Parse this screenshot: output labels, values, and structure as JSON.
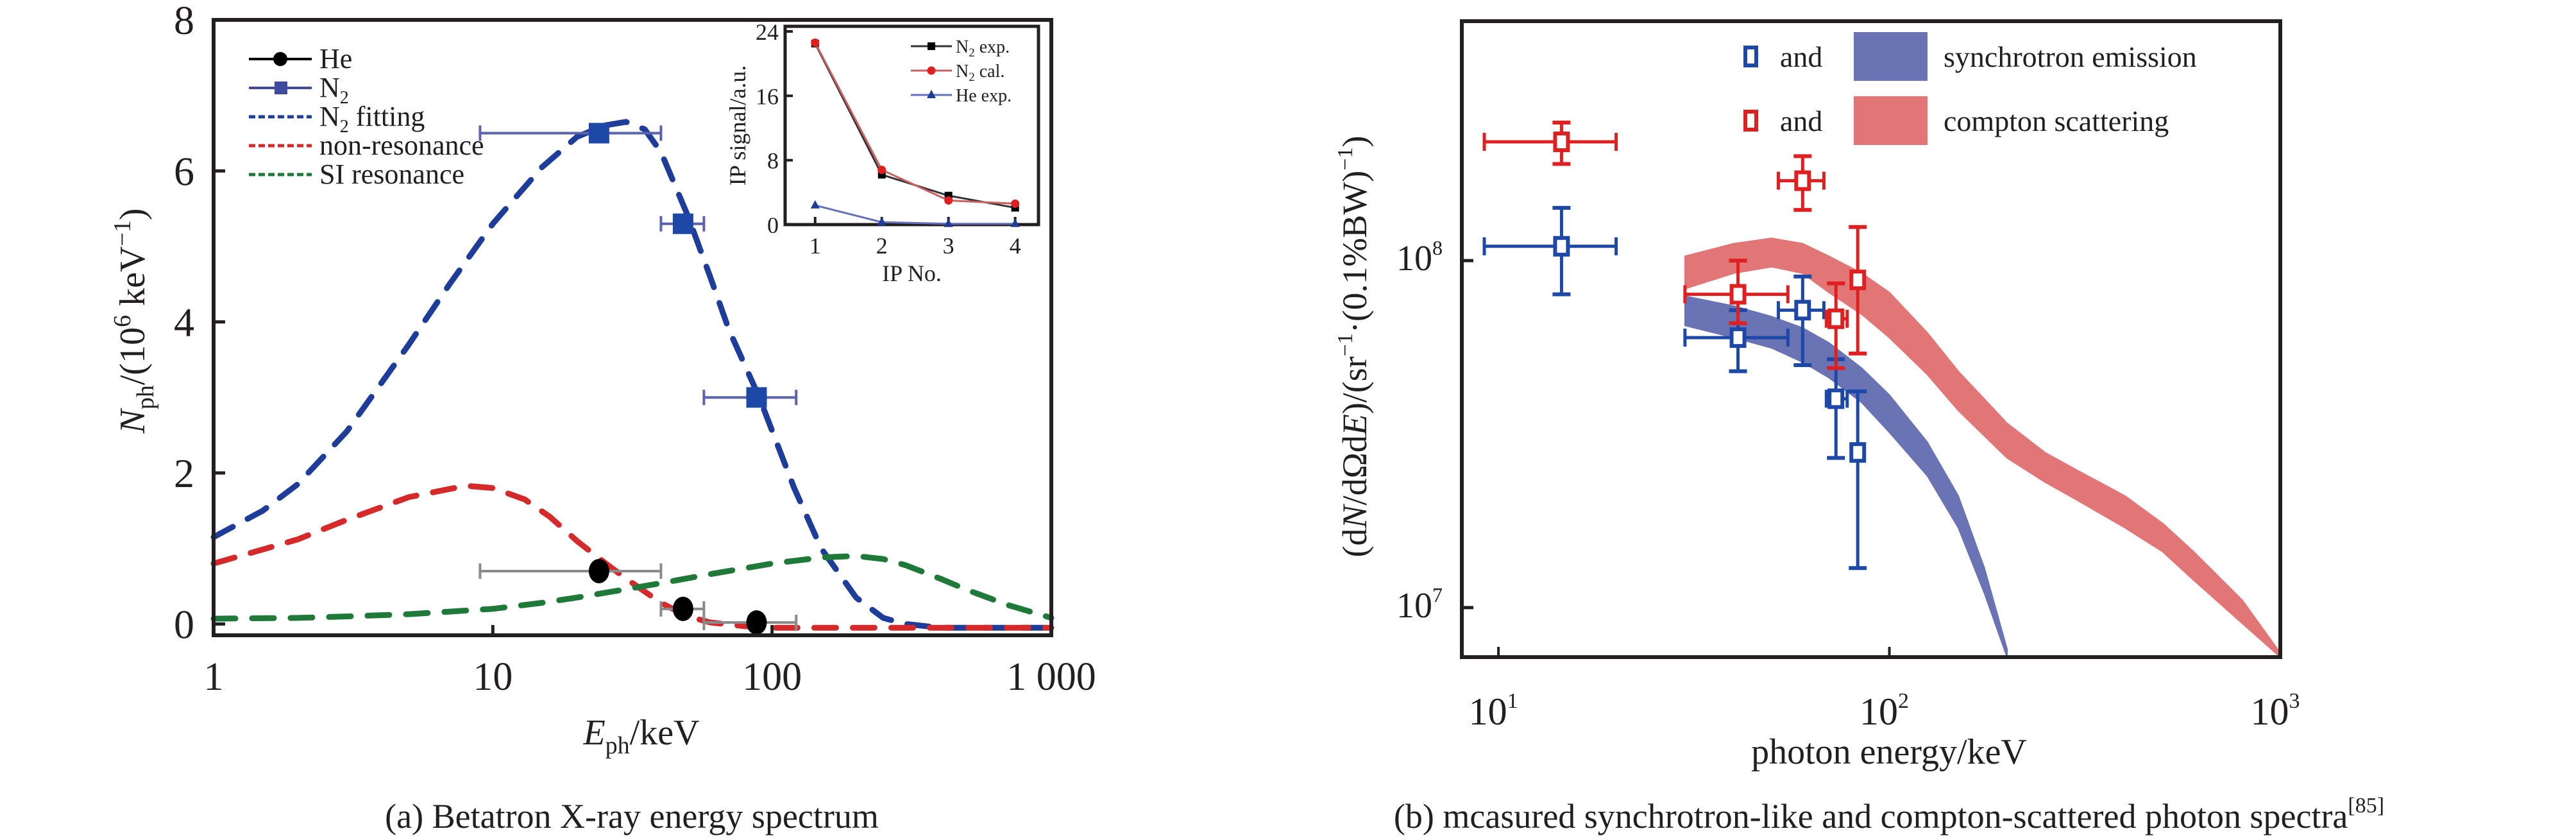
{
  "chart_data": [
    {
      "id": "a",
      "type": "line",
      "caption": "(a) Betatron X-ray energy spectrum",
      "xlabel": {
        "main": "E",
        "sub": "ph",
        "rest": "/keV"
      },
      "ylabel": {
        "main": "N",
        "sub": "ph",
        "rest": "/(10",
        "sup": "6",
        "rest2": " keV",
        "sup2": "−1",
        "close": ")"
      },
      "xscale": "log",
      "xlim": [
        1,
        1000
      ],
      "ylim": [
        -0.15,
        8
      ],
      "xticks": [
        1,
        10,
        100,
        1000
      ],
      "xtick_labels": [
        "1",
        "10",
        "100",
        "1 000"
      ],
      "yticks": [
        0,
        2,
        4,
        6,
        8
      ],
      "ytick_labels": [
        "0",
        "2",
        "4",
        "6",
        "8"
      ],
      "legend_position": "top-left",
      "legend": [
        {
          "label": "He",
          "sub": "",
          "rest": "",
          "style": "line-marker-circle",
          "color": "#000000",
          "text_color": "#231f20"
        },
        {
          "label": "N",
          "sub": "2",
          "rest": "",
          "style": "line-marker-square",
          "color": "#3f4aa0",
          "text_color": "#1d4e9e"
        },
        {
          "label": "N",
          "sub": "2",
          "rest": " fitting",
          "style": "dashed",
          "color": "#1e3c9a",
          "text_color": "#1d4e9e"
        },
        {
          "label": "non-resonance",
          "sub": "",
          "rest": "",
          "style": "dashed",
          "color": "#d62a2a",
          "text_color": "#d7182a"
        },
        {
          "label": "SI resonance",
          "sub": "",
          "rest": "",
          "style": "dashed",
          "color": "#1f7a3a",
          "text_color": "#1a6e3b"
        }
      ],
      "series": [
        {
          "name": "N2 fitting",
          "style": "dashed",
          "color": "#1e3c9a",
          "x": [
            1,
            1.5,
            2,
            3,
            5,
            7,
            10,
            15,
            20,
            25,
            30,
            35,
            40,
            50,
            60,
            70,
            90,
            120,
            150,
            200,
            250,
            300,
            400,
            1000
          ],
          "y": [
            1.15,
            1.5,
            1.85,
            2.55,
            3.7,
            4.5,
            5.3,
            6.05,
            6.45,
            6.6,
            6.65,
            6.55,
            6.25,
            5.4,
            4.6,
            3.9,
            3.0,
            1.8,
            1.0,
            0.35,
            0.08,
            0.0,
            -0.05,
            -0.05
          ]
        },
        {
          "name": "non-resonance",
          "style": "dashed",
          "color": "#d62a2a",
          "x": [
            1,
            2,
            3,
            5,
            8,
            10,
            13,
            16,
            20,
            25,
            30,
            40,
            50,
            60,
            80,
            100,
            1000
          ],
          "y": [
            0.8,
            1.12,
            1.38,
            1.68,
            1.83,
            1.8,
            1.65,
            1.42,
            1.1,
            0.82,
            0.6,
            0.28,
            0.1,
            0.02,
            -0.03,
            -0.05,
            -0.05
          ]
        },
        {
          "name": "SI resonance",
          "style": "dashed",
          "color": "#1f7a3a",
          "x": [
            1,
            2,
            3,
            5,
            10,
            15,
            20,
            30,
            40,
            60,
            100,
            150,
            200,
            250,
            300,
            400,
            500,
            700,
            1000
          ],
          "y": [
            0.07,
            0.08,
            0.1,
            0.13,
            0.2,
            0.28,
            0.35,
            0.46,
            0.54,
            0.66,
            0.8,
            0.88,
            0.9,
            0.86,
            0.78,
            0.6,
            0.45,
            0.25,
            0.08
          ]
        },
        {
          "name": "N2",
          "style": "markers-square",
          "color": "#1e48a8",
          "errcolor": "#5a63ad",
          "points": [
            {
              "x": 24,
              "y": 6.5,
              "xmin": 9,
              "xmax": 40
            },
            {
              "x": 48,
              "y": 5.3,
              "xmin": 40,
              "xmax": 57
            },
            {
              "x": 88,
              "y": 3.0,
              "xmin": 57,
              "xmax": 122
            }
          ]
        },
        {
          "name": "He",
          "style": "markers-circle",
          "color": "#000000",
          "errcolor": "#8a8a8a",
          "points": [
            {
              "x": 24,
              "y": 0.7,
              "xmin": 9,
              "xmax": 40
            },
            {
              "x": 48,
              "y": 0.2,
              "xmin": 40,
              "xmax": 57
            },
            {
              "x": 88,
              "y": 0.02,
              "xmin": 57,
              "xmax": 122
            }
          ]
        }
      ],
      "inset": {
        "type": "line",
        "xlabel": "IP No.",
        "ylabel": "IP signal/a.u.",
        "xlim": [
          0.55,
          4.35
        ],
        "ylim": [
          0,
          24
        ],
        "categories": [
          1,
          2,
          3,
          4
        ],
        "xtick_labels": [
          "1",
          "2",
          "3",
          "4"
        ],
        "yticks": [
          0,
          8,
          16,
          24
        ],
        "ytick_labels": [
          "0",
          "8",
          "16",
          "24"
        ],
        "legend_position": "top-right",
        "series": [
          {
            "name": "N2 exp.",
            "label": "N",
            "sub": "2",
            "rest": " exp.",
            "marker": "square",
            "color": "#000000",
            "line_color": "#333333",
            "values": [
              22.5,
              6.2,
              3.6,
              2.1
            ]
          },
          {
            "name": "N2 cal.",
            "label": "N",
            "sub": "2",
            "rest": " cal.",
            "marker": "circle",
            "color": "#e02020",
            "line_color": "#c96060",
            "values": [
              22.6,
              6.8,
              3.0,
              2.6
            ]
          },
          {
            "name": "He exp.",
            "label": "He exp.",
            "sub": "",
            "rest": "",
            "marker": "triangle",
            "color": "#1e3c9a",
            "line_color": "#6670c0",
            "values": [
              2.4,
              0.3,
              0.1,
              0.1
            ]
          }
        ]
      }
    },
    {
      "id": "b",
      "type": "scatter",
      "caption": "(b) mcasured synchrotron-like and compton-scattered photon spectra",
      "caption_sup": "[85]",
      "xlabel": "photon energy/keV",
      "ylabel": {
        "pre": "(d",
        "n": "N",
        "mid": "/dΩd",
        "e": "E",
        "rest": ")/(sr",
        "sup1": "−1",
        "dot": "·(0.1%BW)",
        "sup2": "−1",
        "close": ")"
      },
      "xscale": "log",
      "yscale": "log",
      "xlim": [
        8.06,
        1000
      ],
      "ylim": [
        7200000.0,
        490000000.0
      ],
      "xticks": [
        10,
        100,
        1000
      ],
      "xtick_labels": [
        {
          "base": "10",
          "exp": "1"
        },
        {
          "base": "10",
          "exp": "2"
        },
        {
          "base": "10",
          "exp": "3"
        }
      ],
      "yticks": [
        10000000.0,
        100000000.0
      ],
      "ytick_labels": [
        {
          "base": "10",
          "exp": "7"
        },
        {
          "base": "10",
          "exp": "8"
        }
      ],
      "legend_position": "top-center",
      "legend": [
        {
          "marker_color": "#1e48a8",
          "and": "and",
          "band_color": "#6a74b4",
          "label": "synchrotron emission"
        },
        {
          "marker_color": "#e02020",
          "and": "and",
          "band_color": "#e27677",
          "label": "compton scattering"
        }
      ],
      "bands": [
        {
          "name": "synchrotron emission",
          "color": "#6a74b4",
          "x": [
            30,
            40,
            50,
            60,
            70,
            85,
            100,
            125,
            150,
            175,
            200
          ],
          "upper": [
            79000000.0,
            74000000.0,
            69000000.0,
            64000000.0,
            58000000.0,
            49000000.0,
            41000000.0,
            30000000.0,
            21000000.0,
            13000000.0,
            7600000.0
          ],
          "lower": [
            65000000.0,
            60000000.0,
            56000000.0,
            51000000.0,
            46000000.0,
            39000000.0,
            32000000.0,
            24000000.0,
            17000000.0,
            11000000.0,
            7200000.0
          ]
        },
        {
          "name": "compton scattering",
          "color": "#e27677",
          "x": [
            30,
            40,
            50,
            60,
            70,
            85,
            100,
            125,
            150,
            200,
            250,
            300,
            400,
            500,
            600,
            800,
            1000
          ],
          "upper": [
            103000000.0,
            112000000.0,
            116000000.0,
            112000000.0,
            103000000.0,
            92000000.0,
            81000000.0,
            62000000.0,
            48000000.0,
            34000000.0,
            28000000.0,
            25000000.0,
            21000000.0,
            17500000.0,
            14500000.0,
            10500000.0,
            7400000.0
          ],
          "lower": [
            83000000.0,
            92000000.0,
            96000000.0,
            92000000.0,
            81000000.0,
            70000000.0,
            60000000.0,
            47000000.0,
            37000000.0,
            27000000.0,
            23000000.0,
            20500000.0,
            17000000.0,
            14500000.0,
            12000000.0,
            9000000.0,
            7200000.0
          ]
        }
      ],
      "series": [
        {
          "name": "synchrotron-like measured",
          "color": "#1e48a8",
          "points": [
            {
              "x": 14.5,
              "y": 110000000.0,
              "xmin": 9.2,
              "xmax": 20,
              "ymin": 80000000.0,
              "ymax": 142000000.0
            },
            {
              "x": 41,
              "y": 60000000.0,
              "xmin": 30,
              "xmax": 55,
              "ymin": 48000000.0,
              "ymax": 72000000.0
            },
            {
              "x": 60,
              "y": 72000000.0,
              "xmin": 52,
              "xmax": 68,
              "ymin": 50000000.0,
              "ymax": 90000000.0
            },
            {
              "x": 73,
              "y": 40000000.0,
              "xmin": 69,
              "xmax": 78,
              "ymin": 27000000.0,
              "ymax": 52000000.0
            },
            {
              "x": 83,
              "y": 28000000.0,
              "xmin": 83,
              "xmax": 83,
              "ymin": 13000000.0,
              "ymax": 42000000.0
            }
          ]
        },
        {
          "name": "compton-scattered measured",
          "color": "#e02020",
          "points": [
            {
              "x": 14.5,
              "y": 220000000.0,
              "xmin": 9.2,
              "xmax": 20,
              "ymin": 190000000.0,
              "ymax": 250000000.0
            },
            {
              "x": 60,
              "y": 170000000.0,
              "xmin": 52,
              "xmax": 68,
              "ymin": 140000000.0,
              "ymax": 200000000.0
            },
            {
              "x": 41,
              "y": 80000000.0,
              "xmin": 30,
              "xmax": 55,
              "ymin": 66000000.0,
              "ymax": 100000000.0
            },
            {
              "x": 73,
              "y": 68000000.0,
              "xmin": 69,
              "xmax": 78,
              "ymin": 49000000.0,
              "ymax": 86000000.0
            },
            {
              "x": 83,
              "y": 88000000.0,
              "xmin": 83,
              "xmax": 83,
              "ymin": 54000000.0,
              "ymax": 125000000.0
            }
          ]
        }
      ]
    }
  ]
}
